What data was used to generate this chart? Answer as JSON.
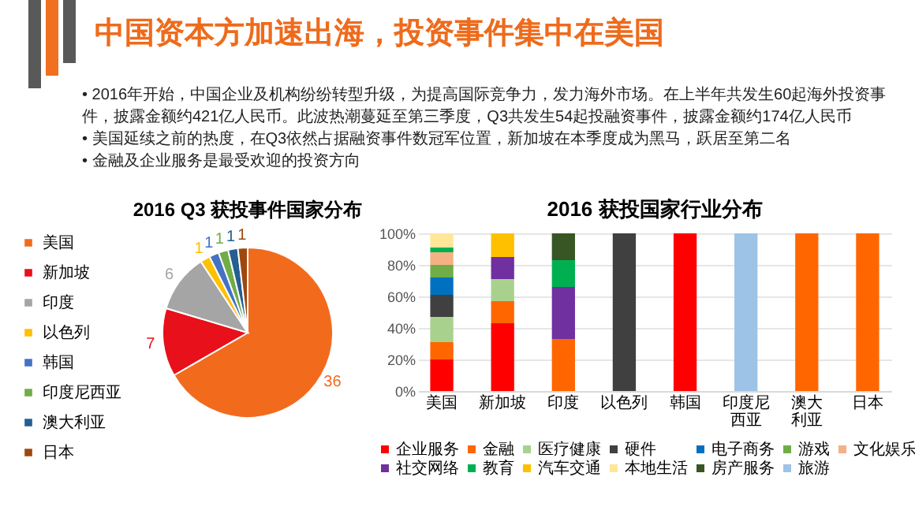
{
  "chart_data": [
    {
      "type": "other",
      "title": "中国资本方加速出海，投资事件集中在美国",
      "annotations": [
        "• 2016年开始，中国企业及机构纷纷转型升级，为提高国际竞争力，发力海外市场。在上半年共发生60起海外投资事件，披露金额约421亿人民币。此波热潮蔓延至第三季度，Q3共发生54起投融资事件，披露金额约174亿人民币",
        "• 美国延续之前的热度，在Q3依然占据融资事件数冠军位置，新加坡在本季度成为黑马，跃居至第二名",
        "• 金融及企业服务是最受欢迎的投资方向"
      ]
    },
    {
      "type": "pie",
      "title": "2016 Q3 获投事件国家分布",
      "categories": [
        "美国",
        "新加坡",
        "印度",
        "以色列",
        "韩国",
        "印度尼西亚",
        "澳大利亚",
        "日本"
      ],
      "values": [
        36,
        7,
        6,
        1,
        1,
        1,
        1,
        1
      ],
      "colors": [
        "#f26b1d",
        "#e8101a",
        "#a5a5a5",
        "#ffc000",
        "#4472c4",
        "#70ad47",
        "#255e91",
        "#9e480e"
      ],
      "data_labels": true,
      "legend": "left"
    },
    {
      "type": "bar",
      "stacked": true,
      "title": "2016 获投国家行业分布",
      "categories": [
        "美国",
        "新加坡",
        "印度",
        "以色列",
        "韩国",
        "印度尼西亚",
        "澳大利亚",
        "日本"
      ],
      "ylim": [
        0,
        100
      ],
      "yticks": [
        {
          "value": 0,
          "label": "0%"
        },
        {
          "value": 20,
          "label": "20%"
        },
        {
          "value": 40,
          "label": "40%"
        },
        {
          "value": 60,
          "label": "60%"
        },
        {
          "value": 80,
          "label": "80%"
        },
        {
          "value": 100,
          "label": "100%"
        }
      ],
      "grid": "y",
      "legend": "bottom",
      "series": [
        {
          "name": "企业服务",
          "color": "#ff0000",
          "values": [
            20,
            43,
            null,
            null,
            100,
            null,
            null,
            null
          ]
        },
        {
          "name": "金融",
          "color": "#ff6600",
          "values": [
            11,
            14,
            33,
            null,
            null,
            null,
            100,
            100
          ]
        },
        {
          "name": "医疗健康",
          "color": "#a9d18e",
          "values": [
            16,
            14,
            null,
            null,
            null,
            null,
            null,
            null
          ]
        },
        {
          "name": "硬件",
          "color": "#404040",
          "values": [
            14,
            null,
            null,
            100,
            null,
            null,
            null,
            null
          ]
        },
        {
          "name": "电子商务",
          "color": "#0070c0",
          "values": [
            11,
            null,
            null,
            null,
            null,
            null,
            null,
            null
          ]
        },
        {
          "name": "游戏",
          "color": "#70ad47",
          "values": [
            8,
            null,
            null,
            null,
            null,
            null,
            null,
            null
          ]
        },
        {
          "name": "文化娱乐",
          "color": "#f4b183",
          "values": [
            8,
            null,
            null,
            null,
            null,
            null,
            null,
            null
          ]
        },
        {
          "name": "社交网络",
          "color": "#7030a0",
          "values": [
            null,
            14,
            33,
            null,
            null,
            null,
            null,
            null
          ]
        },
        {
          "name": "教育",
          "color": "#00b050",
          "values": [
            3,
            null,
            17,
            null,
            null,
            null,
            null,
            null
          ]
        },
        {
          "name": "汽车交通",
          "color": "#ffc000",
          "values": [
            null,
            15,
            null,
            null,
            null,
            null,
            null,
            null
          ]
        },
        {
          "name": "本地生活",
          "color": "#ffe699",
          "values": [
            9,
            null,
            null,
            null,
            null,
            null,
            null,
            null
          ]
        },
        {
          "name": "房产服务",
          "color": "#375623",
          "values": [
            null,
            null,
            17,
            null,
            null,
            null,
            null,
            null
          ]
        },
        {
          "name": "旅游",
          "color": "#9dc3e6",
          "values": [
            null,
            null,
            null,
            null,
            null,
            100,
            null,
            null
          ]
        }
      ]
    }
  ]
}
